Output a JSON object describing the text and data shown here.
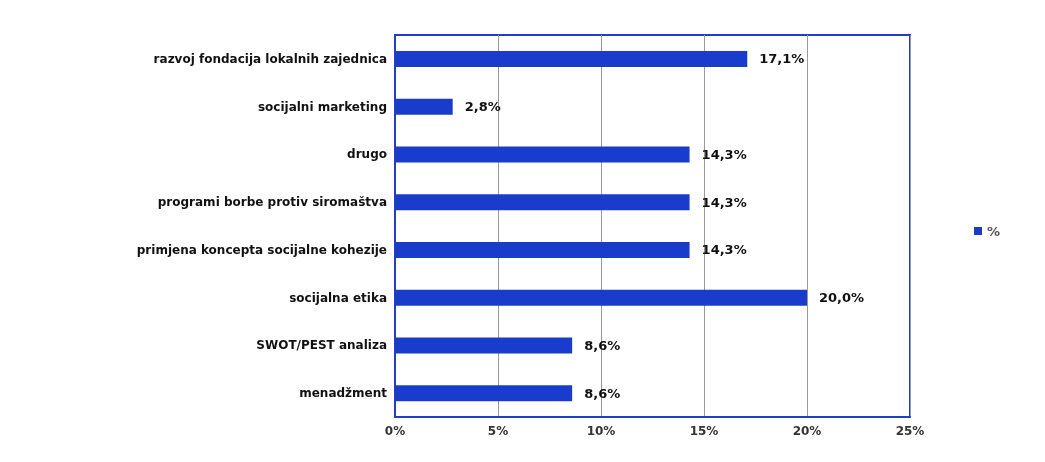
{
  "chart_data": {
    "type": "bar",
    "orientation": "horizontal",
    "categories": [
      "razvoj fondacija lokalnih zajednica",
      "socijalni marketing",
      "drugo",
      "programi borbe protiv siromaštva",
      "primjena koncepta socijalne kohezije",
      "socijalna etika",
      "SWOT/PEST analiza",
      "menadžment"
    ],
    "series": [
      {
        "name": "%",
        "color": "#1a3ccc",
        "values": [
          17.1,
          2.8,
          14.3,
          14.3,
          14.3,
          20.0,
          8.6,
          8.6
        ],
        "value_labels": [
          "17,1%",
          "2,8%",
          "14,3%",
          "14,3%",
          "14,3%",
          "20,0%",
          "8,6%",
          "8,6%"
        ]
      }
    ],
    "xlim": [
      0,
      25
    ],
    "xticks": [
      {
        "value": 0,
        "label": "0%"
      },
      {
        "value": 5,
        "label": "5%"
      },
      {
        "value": 10,
        "label": "10%"
      },
      {
        "value": 15,
        "label": "15%"
      },
      {
        "value": 20,
        "label": "20%"
      },
      {
        "value": 25,
        "label": "25%"
      }
    ],
    "grid": "x",
    "legend": "right"
  }
}
